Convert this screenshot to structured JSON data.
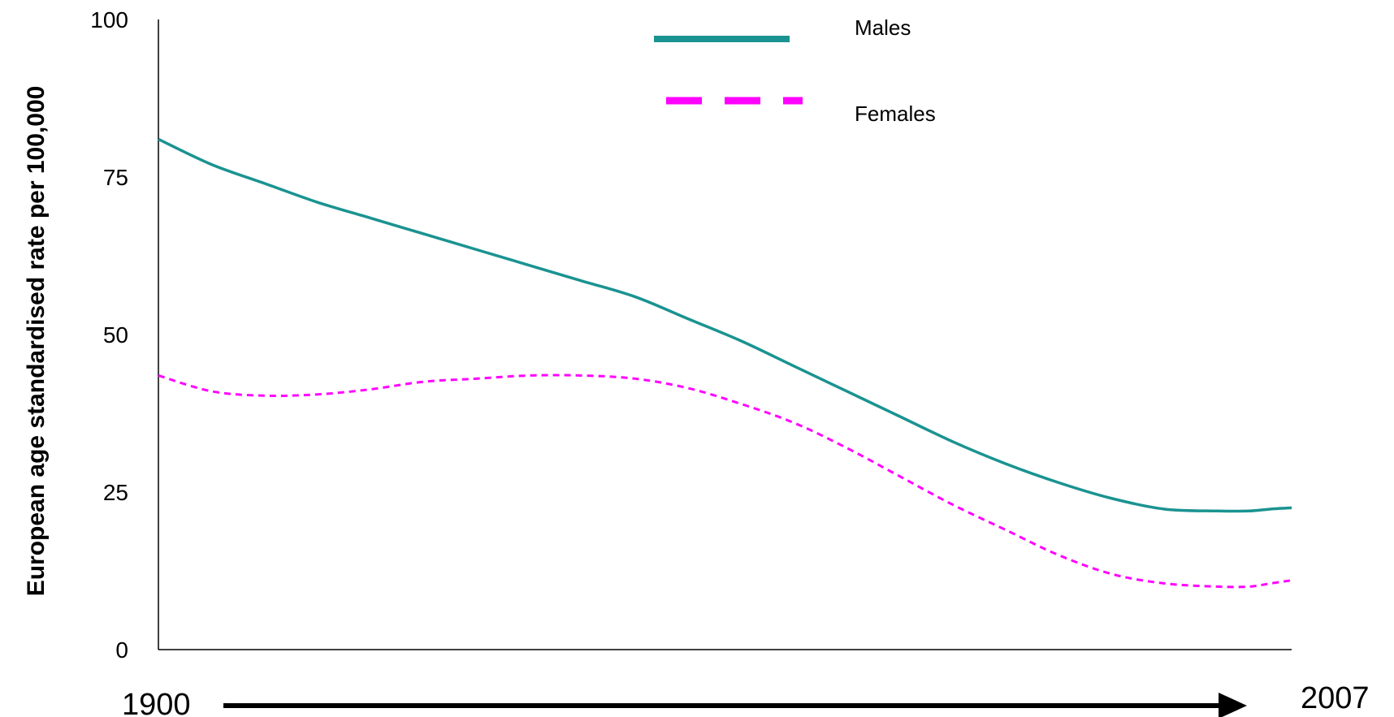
{
  "chart_data": {
    "type": "line",
    "title": "",
    "xlabel": "",
    "ylabel": "European age standardised rate per 100,000",
    "x_start_label": "1900",
    "x_end_label": "2007",
    "xlim": [
      1900,
      2007
    ],
    "ylim": [
      0,
      100
    ],
    "yticks": [
      "0",
      "25",
      "50",
      "75",
      "100"
    ],
    "grid": false,
    "legend": "top-center",
    "x": [
      1900,
      1905,
      1910,
      1915,
      1920,
      1925,
      1930,
      1935,
      1940,
      1945,
      1950,
      1955,
      1960,
      1965,
      1970,
      1975,
      1980,
      1985,
      1990,
      1995,
      2000,
      2003,
      2005,
      2007
    ],
    "series": [
      {
        "name": "Males",
        "color": "#1a9391",
        "style": "solid",
        "values": [
          81,
          77,
          74,
          71,
          68.5,
          66,
          63.5,
          61,
          58.5,
          56,
          52.5,
          49,
          45,
          41,
          37,
          33,
          29.5,
          26.5,
          24,
          22.3,
          22,
          22,
          22.3,
          22.5
        ]
      },
      {
        "name": "Females",
        "color": "#ff00ff",
        "style": "dashed",
        "values": [
          43.5,
          41,
          40.3,
          40.5,
          41.3,
          42.5,
          43,
          43.5,
          43.5,
          43,
          41.5,
          39,
          36,
          32,
          27.5,
          23,
          19,
          15,
          12,
          10.5,
          10,
          10,
          10.5,
          11
        ]
      }
    ]
  }
}
